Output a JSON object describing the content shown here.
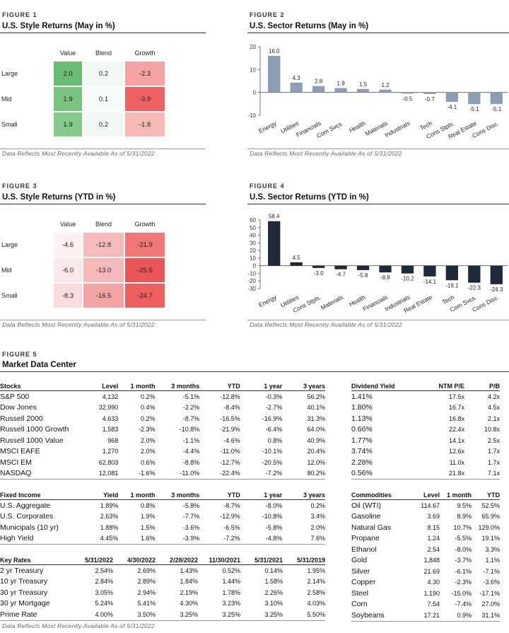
{
  "fig1": {
    "label": "FIGURE 1",
    "title": "U.S. Style Returns (May in %)",
    "note": "Data Reflects Most Recently Available As of 5/31/2022",
    "columns": [
      "Value",
      "Blend",
      "Growth"
    ],
    "rows": [
      "Large",
      "Mid",
      "Small"
    ],
    "values": [
      [
        "2.0",
        "0.2",
        "-2.3"
      ],
      [
        "1.9",
        "0.1",
        "-3.9"
      ],
      [
        "1.9",
        "0.2",
        "-1.8"
      ]
    ],
    "colors": [
      [
        "#6abb73",
        "#f2f8f3",
        "#f4a3a4"
      ],
      [
        "#79c280",
        "#f7fbf8",
        "#ee6266"
      ],
      [
        "#86c88c",
        "#f2f8f3",
        "#f7b8b8"
      ]
    ]
  },
  "fig2": {
    "label": "FIGURE 2",
    "title": "U.S. Sector Returns (May in %)",
    "note": "Data Reflects Most Recently Available As of 5/31/2022"
  },
  "fig3": {
    "label": "FIGURE 3",
    "title": "U.S. Style Returns (YTD in %)",
    "note": "Data Reflects Most Recently Available As of 5/31/2022",
    "columns": [
      "Value",
      "Blend",
      "Growth"
    ],
    "rows": [
      "Large",
      "Mid",
      "Small"
    ],
    "values": [
      [
        "-4.6",
        "-12.8",
        "-21.9"
      ],
      [
        "-6.0",
        "-13.0",
        "-25.5"
      ],
      [
        "-8.3",
        "-16.5",
        "-24.7"
      ]
    ],
    "colors": [
      [
        "#fdf0f0",
        "#f6bcbd",
        "#f07678"
      ],
      [
        "#fce8e8",
        "#f6b9ba",
        "#ec5558"
      ],
      [
        "#fadcdc",
        "#f4a4a5",
        "#ee5f62"
      ]
    ]
  },
  "fig4": {
    "label": "FIGURE 4",
    "title": "U.S. Sector Returns (YTD in %)",
    "note": "Data Reflects Most Recently Available As of 5/31/2022"
  },
  "chart_data": [
    {
      "type": "bar",
      "id": "fig2",
      "categories": [
        "Energy",
        "Utilities",
        "Financials",
        "Com Svcs.",
        "Health",
        "Materials",
        "Industrials",
        "Tech",
        "Cons Stpls.",
        "Real Estate",
        "Cons Disc."
      ],
      "values": [
        16.0,
        4.3,
        2.8,
        1.9,
        1.5,
        1.2,
        -0.5,
        -0.7,
        -4.1,
        -5.1,
        -5.1
      ],
      "value_labels": [
        "16.0",
        "4.3",
        "2.8",
        "1.9",
        "1.5",
        "1.2",
        "-0.5",
        "-0.7",
        "-4.1",
        "-5.1",
        "-5.1"
      ],
      "ylim": [
        -10,
        20
      ],
      "yticks": [
        "-10",
        "0",
        "10",
        "20"
      ],
      "ytick_values": [
        -10,
        0,
        10,
        20
      ],
      "bar_color": "#8c9db4",
      "grid": false
    },
    {
      "type": "bar",
      "id": "fig4",
      "categories": [
        "Energy",
        "Utilities",
        "Cons Stpls.",
        "Materials",
        "Health",
        "Financials",
        "Industrials",
        "Real Estate",
        "Tech",
        "Com Svcs.",
        "Cons Disc."
      ],
      "values": [
        58.4,
        4.5,
        -3.0,
        -4.7,
        -5.8,
        -8.8,
        -10.2,
        -14.1,
        -19.1,
        -22.3,
        -24.3
      ],
      "value_labels": [
        "58.4",
        "4.5",
        "-3.0",
        "-4.7",
        "-5.8",
        "-8.8",
        "-10.2",
        "-14.1",
        "-19.1",
        "-22.3",
        "-24.3"
      ],
      "ylim": [
        -30,
        60
      ],
      "yticks": [
        "-30",
        "-20",
        "-10",
        "0",
        "10",
        "20",
        "30",
        "40",
        "50",
        "60"
      ],
      "ytick_values": [
        -30,
        -20,
        -10,
        0,
        10,
        20,
        30,
        40,
        50,
        60
      ],
      "bar_color": "#1f2937",
      "grid": false
    }
  ],
  "fig5": {
    "label": "FIGURE 5",
    "title": "Market Data Center",
    "note": "Data Reflects Most Recently Available As of 5/31/2022",
    "stocks": {
      "headers": [
        "Stocks",
        "Level",
        "1 month",
        "3 months",
        "YTD",
        "1 year",
        "3 years"
      ],
      "rows": [
        [
          "S&P 500",
          "4,132",
          "0.2%",
          "-5.1%",
          "-12.8%",
          "-0.3%",
          "56.2%"
        ],
        [
          "Dow Jones",
          "32,990",
          "0.4%",
          "-2.2%",
          "-8.4%",
          "-2.7%",
          "40.1%"
        ],
        [
          "Russell 2000",
          "4,633",
          "0.2%",
          "-8.7%",
          "-16.5%",
          "-16.9%",
          "31.3%"
        ],
        [
          "Russell 1000 Growth",
          "1,583",
          "-2.3%",
          "-10.8%",
          "-21.9%",
          "-6.4%",
          "64.0%"
        ],
        [
          "Russell 1000 Value",
          "968",
          "2.0%",
          "-1.1%",
          "-4.6%",
          "0.8%",
          "40.9%"
        ],
        [
          "MSCI EAFE",
          "1,270",
          "2.0%",
          "-4.4%",
          "-11.0%",
          "-10.1%",
          "20.4%"
        ],
        [
          "MSCI EM",
          "62,803",
          "0.6%",
          "-8.8%",
          "-12.7%",
          "-20.5%",
          "12.0%"
        ],
        [
          "NASDAQ",
          "12,081",
          "-1.6%",
          "-11.0%",
          "-22.4%",
          "-7.2%",
          "80.2%"
        ]
      ]
    },
    "dividend": {
      "headers": [
        "Dividend Yield",
        "NTM P/E",
        "P/B"
      ],
      "rows": [
        [
          "1.41%",
          "17.5x",
          "4.2x"
        ],
        [
          "1.80%",
          "16.7x",
          "4.5x"
        ],
        [
          "1.13%",
          "16.8x",
          "2.1x"
        ],
        [
          "0.66%",
          "22.4x",
          "10.8x"
        ],
        [
          "1.77%",
          "14.1x",
          "2.5x"
        ],
        [
          "3.74%",
          "12.6x",
          "1.7x"
        ],
        [
          "2.28%",
          "11.0x",
          "1.7x"
        ],
        [
          "0.56%",
          "21.8x",
          "7.1x"
        ]
      ]
    },
    "fixed": {
      "headers": [
        "Fixed Income",
        "Yield",
        "1 month",
        "3 months",
        "YTD",
        "1 year",
        "3 years"
      ],
      "rows": [
        [
          "U.S. Aggregate",
          "1.89%",
          "0.8%",
          "-5.8%",
          "-8.7%",
          "-8.0%",
          "0.2%"
        ],
        [
          "U.S. Corporates",
          "2.63%",
          "1.9%",
          "-7.7%",
          "-12.9%",
          "-10.8%",
          "3.4%"
        ],
        [
          "Municipals (10 yr)",
          "1.88%",
          "1.5%",
          "-3.6%",
          "-6.5%",
          "-5.8%",
          "2.0%"
        ],
        [
          "High Yield",
          "4.45%",
          "1.6%",
          "-3.9%",
          "-7.2%",
          "-4.8%",
          "7.6%"
        ]
      ]
    },
    "rates": {
      "headers": [
        "Key Rates",
        "5/31/2022",
        "4/30/2022",
        "2/28/2022",
        "11/30/2021",
        "5/31/2021",
        "5/31/2019"
      ],
      "rows": [
        [
          "2 yr Treasury",
          "2.54%",
          "2.69%",
          "1.43%",
          "0.52%",
          "0.14%",
          "1.95%"
        ],
        [
          "10 yr Treasury",
          "2.84%",
          "2.89%",
          "1.84%",
          "1.44%",
          "1.58%",
          "2.14%"
        ],
        [
          "30 yr Treasury",
          "3.05%",
          "2.94%",
          "2.19%",
          "1.78%",
          "2.26%",
          "2.58%"
        ],
        [
          "30 yr Mortgage",
          "5.24%",
          "5.41%",
          "4.30%",
          "3.23%",
          "3.10%",
          "4.03%"
        ],
        [
          "Prime Rate",
          "4.00%",
          "3.50%",
          "3.25%",
          "3.25%",
          "3.25%",
          "5.50%"
        ]
      ]
    },
    "commodities": {
      "headers": [
        "Commodities",
        "Level",
        "1 month",
        "YTD"
      ],
      "rows": [
        [
          "Oil (WTI)",
          "114.67",
          "9.5%",
          "52.5%"
        ],
        [
          "Gasoline",
          "3.69",
          "8.9%",
          "65.9%"
        ],
        [
          "Natural Gas",
          "8.15",
          "10.7%",
          "129.0%"
        ],
        [
          "Propane",
          "1.24",
          "-5.5%",
          "19.1%"
        ],
        [
          "Ethanol",
          "2.54",
          "-8.0%",
          "3.3%"
        ],
        [
          "Gold",
          "1,848",
          "-3.7%",
          "1.1%"
        ],
        [
          "Silver",
          "21.69",
          "-6.1%",
          "-7.1%"
        ],
        [
          "Copper",
          "4.30",
          "-2.3%",
          "-3.6%"
        ],
        [
          "Steel",
          "1,190",
          "-15.0%",
          "-17.1%"
        ],
        [
          "Corn",
          "7.54",
          "-7.4%",
          "27.0%"
        ],
        [
          "Soybeans",
          "17.21",
          "0.9%",
          "31.1%"
        ]
      ]
    }
  }
}
